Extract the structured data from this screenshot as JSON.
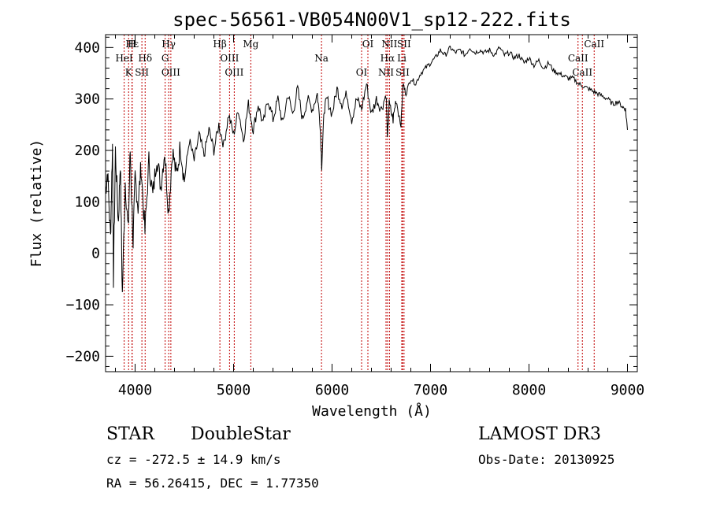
{
  "chart_data": {
    "type": "line",
    "title": "spec-56561-VB054N00V1_sp12-222.fits",
    "xlabel": "Wavelength (Å)",
    "ylabel": "Flux (relative)",
    "xlim": [
      3700,
      9100
    ],
    "ylim": [
      -230,
      425
    ],
    "xticks": [
      4000,
      5000,
      6000,
      7000,
      8000,
      9000
    ],
    "yticks": [
      -200,
      -100,
      0,
      100,
      200,
      300,
      400
    ],
    "series": [
      {
        "name": "flux",
        "x": [
          3700,
          3720,
          3750,
          3770,
          3780,
          3800,
          3830,
          3850,
          3870,
          3900,
          3930,
          3950,
          3980,
          4000,
          4030,
          4060,
          4100,
          4140,
          4180,
          4220,
          4260,
          4300,
          4340,
          4380,
          4420,
          4460,
          4500,
          4550,
          4600,
          4650,
          4700,
          4750,
          4800,
          4850,
          4900,
          4950,
          5000,
          5050,
          5100,
          5150,
          5200,
          5250,
          5300,
          5350,
          5400,
          5450,
          5500,
          5550,
          5600,
          5650,
          5700,
          5750,
          5800,
          5850,
          5880,
          5895,
          5920,
          5950,
          6000,
          6050,
          6100,
          6150,
          6200,
          6250,
          6300,
          6350,
          6400,
          6450,
          6500,
          6550,
          6563,
          6580,
          6620,
          6650,
          6700,
          6720,
          6750,
          6800,
          6850,
          6900,
          6950,
          7000,
          7050,
          7100,
          7150,
          7200,
          7250,
          7300,
          7350,
          7400,
          7450,
          7500,
          7550,
          7600,
          7650,
          7700,
          7750,
          7800,
          7850,
          7900,
          7950,
          8000,
          8050,
          8100,
          8150,
          8200,
          8250,
          8300,
          8350,
          8400,
          8450,
          8500,
          8550,
          8600,
          8650,
          8700,
          8750,
          8800,
          8850,
          8900,
          8950,
          8980,
          9000
        ],
        "y": [
          120,
          160,
          30,
          210,
          -50,
          200,
          60,
          180,
          -80,
          140,
          40,
          200,
          20,
          150,
          90,
          170,
          40,
          180,
          110,
          190,
          130,
          200,
          80,
          200,
          150,
          210,
          140,
          220,
          180,
          230,
          190,
          240,
          200,
          250,
          210,
          270,
          230,
          280,
          220,
          290,
          240,
          290,
          250,
          300,
          260,
          300,
          250,
          310,
          270,
          320,
          260,
          300,
          280,
          310,
          250,
          170,
          280,
          300,
          270,
          320,
          290,
          310,
          260,
          300,
          280,
          330,
          270,
          300,
          280,
          310,
          220,
          290,
          260,
          300,
          250,
          330,
          310,
          340,
          330,
          350,
          360,
          370,
          380,
          395,
          385,
          400,
          390,
          395,
          385,
          400,
          390,
          395,
          390,
          395,
          385,
          400,
          385,
          390,
          380,
          385,
          370,
          380,
          365,
          375,
          360,
          370,
          355,
          350,
          345,
          340,
          340,
          330,
          325,
          320,
          315,
          310,
          305,
          300,
          290,
          295,
          285,
          280,
          240
        ]
      }
    ],
    "lines": [
      {
        "label": "Hε",
        "wl": 3970
      },
      {
        "label": "Hδ",
        "wl": 4102
      },
      {
        "label": "K",
        "wl": 3934
      },
      {
        "label": "H",
        "wl": 3969
      },
      {
        "label": "HeI",
        "wl": 3889
      },
      {
        "label": "SII",
        "wl": 4069
      },
      {
        "label": "Hγ",
        "wl": 4341
      },
      {
        "label": "G",
        "wl": 4305
      },
      {
        "label": "OIII",
        "wl": 4363
      },
      {
        "label": "Hβ",
        "wl": 4861
      },
      {
        "label": "OIII",
        "wl": 4959
      },
      {
        "label": "OIII",
        "wl": 5007
      },
      {
        "label": "Mg",
        "wl": 5175
      },
      {
        "label": "Na",
        "wl": 5893
      },
      {
        "label": "OI",
        "wl": 6300
      },
      {
        "label": "OI",
        "wl": 6364
      },
      {
        "label": "Hα",
        "wl": 6563
      },
      {
        "label": "NII",
        "wl": 6548
      },
      {
        "label": "NII",
        "wl": 6583
      },
      {
        "label": "Li",
        "wl": 6708
      },
      {
        "label": "SII",
        "wl": 6716
      },
      {
        "label": "SII",
        "wl": 6731
      },
      {
        "label": "CaII",
        "wl": 8498
      },
      {
        "label": "CaII",
        "wl": 8542
      },
      {
        "label": "CaII",
        "wl": 8662
      }
    ]
  },
  "info": {
    "class": "STAR",
    "subclass": "DoubleStar",
    "survey": "LAMOST DR3",
    "cz": "cz = -272.5 ± 14.9 km/s",
    "obs_date": "Obs-Date: 20130925",
    "radec": "RA =  56.26415, DEC =   1.77350"
  },
  "colors": {
    "axis": "#000000",
    "spectrum": "#000000",
    "line_marker": "#c00000"
  }
}
